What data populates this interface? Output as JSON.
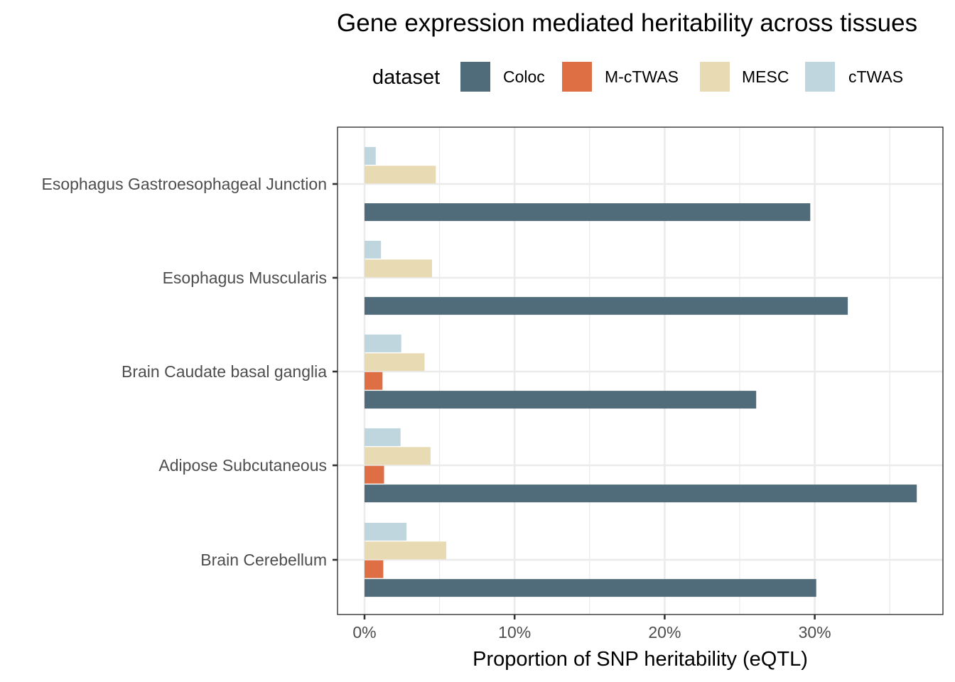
{
  "chart_data": {
    "type": "bar",
    "orientation": "horizontal",
    "title": "Gene expression mediated heritability across tissues",
    "xlabel": "Proportion of SNP heritability (eQTL)",
    "ylabel": "",
    "xlim": [
      0,
      38
    ],
    "xticks": [
      0,
      10,
      20,
      30
    ],
    "xtick_labels": [
      "0%",
      "10%",
      "20%",
      "30%"
    ],
    "grid": true,
    "legend": {
      "title": "dataset",
      "placement": "top",
      "entries": [
        {
          "name": "Coloc",
          "color": "#506c7a"
        },
        {
          "name": "M-cTWAS",
          "color": "#de6e44"
        },
        {
          "name": "MESC",
          "color": "#e8dbb3"
        },
        {
          "name": "cTWAS",
          "color": "#bfd6df"
        }
      ]
    },
    "categories": [
      "Esophagus Gastroesophageal Junction",
      "Esophagus Muscularis",
      "Brain Caudate basal ganglia",
      "Adipose Subcutaneous",
      "Brain Cerebellum"
    ],
    "series": [
      {
        "name": "Coloc",
        "color": "#506c7a",
        "values": [
          29.7,
          32.2,
          26.1,
          36.8,
          30.1
        ]
      },
      {
        "name": "M-cTWAS",
        "color": "#de6e44",
        "values": [
          null,
          null,
          1.2,
          1.3,
          1.25
        ]
      },
      {
        "name": "MESC",
        "color": "#e8dbb3",
        "values": [
          4.75,
          4.5,
          4.0,
          4.4,
          5.45
        ]
      },
      {
        "name": "cTWAS",
        "color": "#bfd6df",
        "values": [
          0.75,
          1.1,
          2.45,
          2.4,
          2.8
        ]
      }
    ],
    "units": "percent"
  }
}
